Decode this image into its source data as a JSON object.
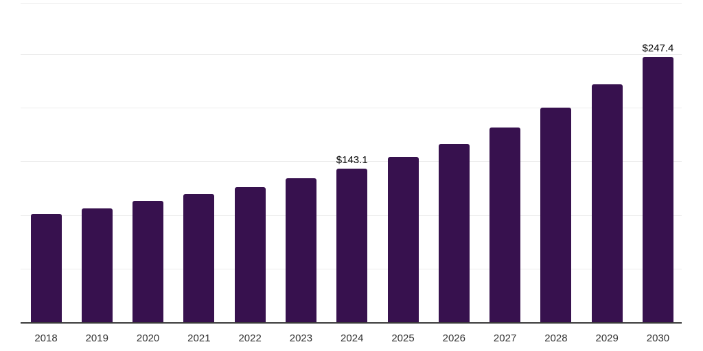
{
  "chart_data": {
    "type": "bar",
    "title": "",
    "xlabel": "",
    "ylabel": "",
    "categories": [
      "2018",
      "2019",
      "2020",
      "2021",
      "2022",
      "2023",
      "2024",
      "2025",
      "2026",
      "2027",
      "2028",
      "2029",
      "2030"
    ],
    "values": [
      101.0,
      106.1,
      113.1,
      119.5,
      125.9,
      134.0,
      143.1,
      154.0,
      166.1,
      181.5,
      200.0,
      221.7,
      247.4
    ],
    "data_labels": [
      null,
      null,
      null,
      null,
      null,
      null,
      "$143.1",
      null,
      null,
      null,
      null,
      null,
      "$247.4"
    ],
    "value_prefix": "$",
    "ylim": [
      0,
      297
    ],
    "gridline_values": [
      50,
      100,
      150,
      200,
      250
    ],
    "grid": "horizontal",
    "legend": "none",
    "y_axis_labels_visible": false
  },
  "colors": {
    "bar": "#37114E",
    "gridline": "#ededed",
    "axis_line": "#3b3b3b",
    "tick_label": "#333333",
    "value_label": "#000000",
    "background": "#ffffff"
  }
}
